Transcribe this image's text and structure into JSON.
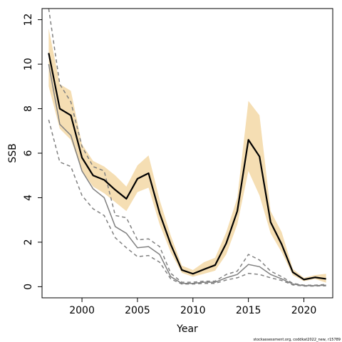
{
  "chart_data": {
    "type": "line",
    "xlabel": "Year",
    "ylabel": "SSB",
    "xlim": [
      1996.4,
      2022.6
    ],
    "ylim": [
      -0.5,
      12.5
    ],
    "x_ticks": [
      2000,
      2005,
      2010,
      2015,
      2020
    ],
    "y_ticks": [
      0,
      2,
      4,
      6,
      8,
      10,
      12
    ],
    "x": [
      1997,
      1998,
      1999,
      2000,
      2001,
      2002,
      2003,
      2004,
      2005,
      2006,
      2007,
      2008,
      2009,
      2010,
      2011,
      2012,
      2013,
      2014,
      2015,
      2016,
      2017,
      2018,
      2019,
      2020,
      2021,
      2022
    ],
    "series": [
      {
        "role": "estimate",
        "color": "#000000",
        "values": [
          10.5,
          8.0,
          7.7,
          5.8,
          5.0,
          4.8,
          4.35,
          3.95,
          4.85,
          5.1,
          3.3,
          1.9,
          0.75,
          0.58,
          0.78,
          0.97,
          1.95,
          3.4,
          6.6,
          5.85,
          2.9,
          1.9,
          0.65,
          0.32,
          0.42,
          0.35
        ],
        "band_upper": [
          11.6,
          9.1,
          8.8,
          6.4,
          5.65,
          5.4,
          5.0,
          4.5,
          5.45,
          5.9,
          3.9,
          2.3,
          0.95,
          0.75,
          1.1,
          1.3,
          2.45,
          4.0,
          8.35,
          7.7,
          3.4,
          2.45,
          0.8,
          0.4,
          0.52,
          0.58
        ],
        "band_lower": [
          9.0,
          7.1,
          6.6,
          5.2,
          4.5,
          4.2,
          3.8,
          3.4,
          4.25,
          4.45,
          2.8,
          1.55,
          0.62,
          0.45,
          0.58,
          0.72,
          1.45,
          2.8,
          5.2,
          4.1,
          2.4,
          1.55,
          0.52,
          0.25,
          0.35,
          0.18
        ],
        "band_color": "#f5deb3"
      },
      {
        "role": "comparison",
        "color": "#808080",
        "values": [
          10.0,
          7.3,
          6.8,
          5.2,
          4.4,
          4.0,
          2.7,
          2.4,
          1.75,
          1.8,
          1.45,
          0.45,
          0.15,
          0.15,
          0.2,
          0.2,
          0.4,
          0.55,
          1.0,
          0.9,
          0.55,
          0.35,
          0.12,
          0.05,
          0.05,
          0.07
        ],
        "upper": [
          12.5,
          9.1,
          8.3,
          6.3,
          5.4,
          5.2,
          3.2,
          3.1,
          2.1,
          2.15,
          1.8,
          0.6,
          0.2,
          0.2,
          0.25,
          0.25,
          0.55,
          0.7,
          1.45,
          1.2,
          0.7,
          0.45,
          0.15,
          0.07,
          0.07,
          0.1
        ],
        "lower": [
          7.5,
          5.6,
          5.4,
          4.1,
          3.5,
          3.2,
          2.2,
          1.75,
          1.35,
          1.4,
          1.1,
          0.35,
          0.12,
          0.12,
          0.15,
          0.15,
          0.3,
          0.4,
          0.6,
          0.55,
          0.4,
          0.28,
          0.08,
          0.03,
          0.03,
          0.04
        ]
      }
    ],
    "grid": false,
    "legend": "none",
    "credit": "stockassessment.org, coddkat2022_new, r15789"
  }
}
